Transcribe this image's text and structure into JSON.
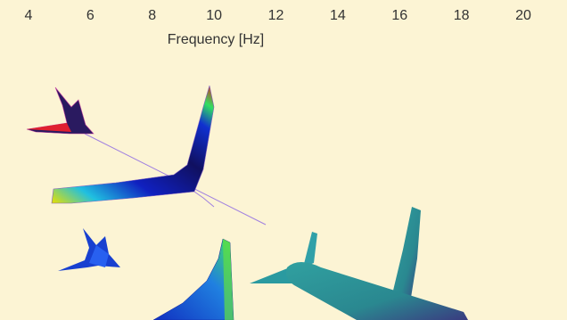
{
  "axis": {
    "ticks": [
      "4",
      "6",
      "8",
      "10",
      "12",
      "14",
      "16",
      "18",
      "20"
    ],
    "label": "Frequency [Hz]"
  }
}
